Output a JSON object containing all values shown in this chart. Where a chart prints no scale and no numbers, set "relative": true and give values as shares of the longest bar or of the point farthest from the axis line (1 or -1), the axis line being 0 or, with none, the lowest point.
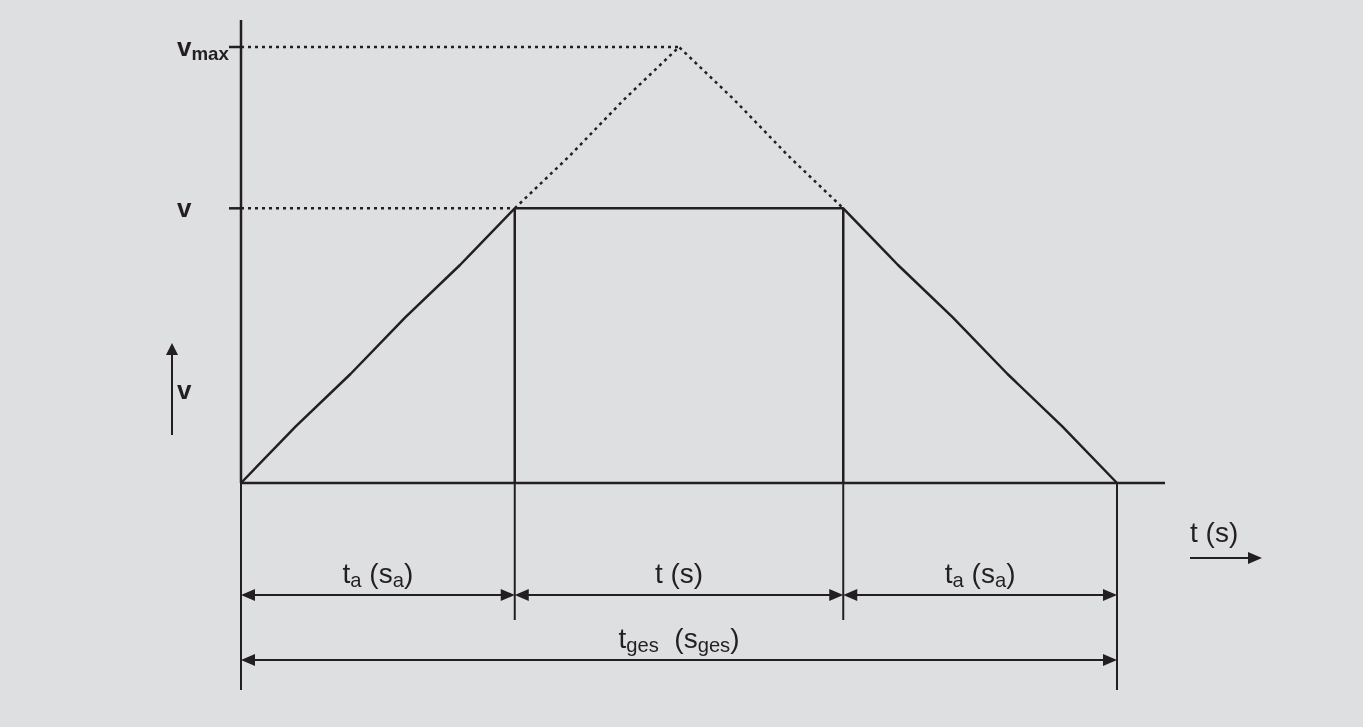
{
  "chart_data": {
    "type": "line",
    "relative": true,
    "xlabel": "t (s)",
    "ylabel": "v",
    "categories": [
      null,
      null,
      null,
      null,
      null,
      null,
      null,
      null,
      null,
      null,
      null,
      null,
      null,
      null,
      null,
      null,
      null
    ],
    "series": [
      {
        "color": "#231f20",
        "line_style": "solid",
        "values": [
          0,
          0.13,
          0.25,
          0.38,
          0.5,
          0.63,
          0.63,
          0.63,
          0.63,
          0.63,
          0.63,
          0.63,
          0.5,
          0.38,
          0.25,
          0.13,
          0
        ]
      },
      {
        "color": "#231f20",
        "line_style": "dotted",
        "values": [
          null,
          null,
          null,
          null,
          null,
          0.63,
          0.75,
          0.88,
          1,
          0.88,
          0.75,
          0.63,
          null,
          null,
          null,
          null,
          null
        ]
      },
      {
        "color": "#231f20",
        "line_style": "dotted",
        "values": [
          0.63,
          0.63,
          0.63,
          0.63,
          0.63,
          0.63,
          null,
          null,
          null,
          null,
          null,
          null,
          null,
          null,
          null,
          null,
          null
        ]
      },
      {
        "color": "#231f20",
        "line_style": "dotted",
        "values": [
          1,
          1,
          1,
          1,
          1,
          1,
          1,
          1,
          1,
          null,
          null,
          null,
          null,
          null,
          null,
          null,
          null
        ]
      }
    ],
    "annotations": [
      "v$_{max}$",
      "v",
      "t$_{a}$ (s$_{a}$)",
      "t (s)",
      "t$_{a}$ (s$_{a}$)",
      "t$_{ges}$  (s$_{ges}$)"
    ]
  }
}
